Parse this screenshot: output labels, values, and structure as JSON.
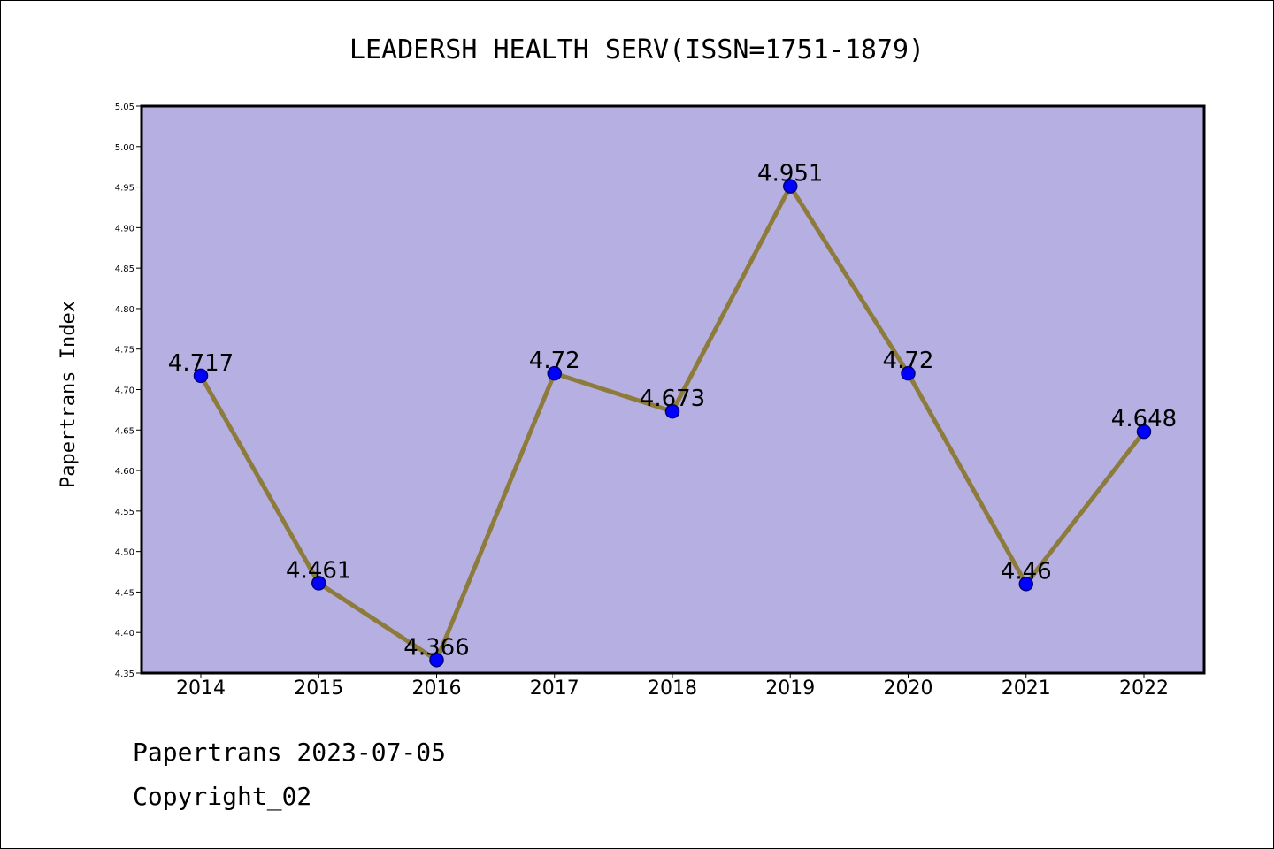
{
  "chart_data": {
    "type": "line",
    "title": "LEADERSH HEALTH SERV(ISSN=1751-1879)",
    "xlabel": "",
    "ylabel": "Papertrans Index",
    "categories": [
      "2014",
      "2015",
      "2016",
      "2017",
      "2018",
      "2019",
      "2020",
      "2021",
      "2022"
    ],
    "values": [
      4.717,
      4.461,
      4.366,
      4.72,
      4.673,
      4.951,
      4.72,
      4.46,
      4.648
    ],
    "data_labels": [
      "4.717",
      "4.461",
      "4.366",
      "4.72",
      "4.673",
      "4.951",
      "4.72",
      "4.46",
      "4.648"
    ],
    "ylim": [
      4.35,
      5.05
    ],
    "yticks": [
      "4.35",
      "4.40",
      "4.45",
      "4.50",
      "4.55",
      "4.60",
      "4.65",
      "4.70",
      "4.75",
      "4.80",
      "4.85",
      "4.90",
      "4.95",
      "5.00",
      "5.05"
    ],
    "grid": false,
    "colors": {
      "plot_background": "#b5afe2",
      "line": "#8c7b3a",
      "marker_fill": "#0000ff",
      "marker_edge": "#000080"
    }
  },
  "footer": {
    "date_line": "Papertrans 2023-07-05",
    "copyright_line": "Copyright_02"
  }
}
